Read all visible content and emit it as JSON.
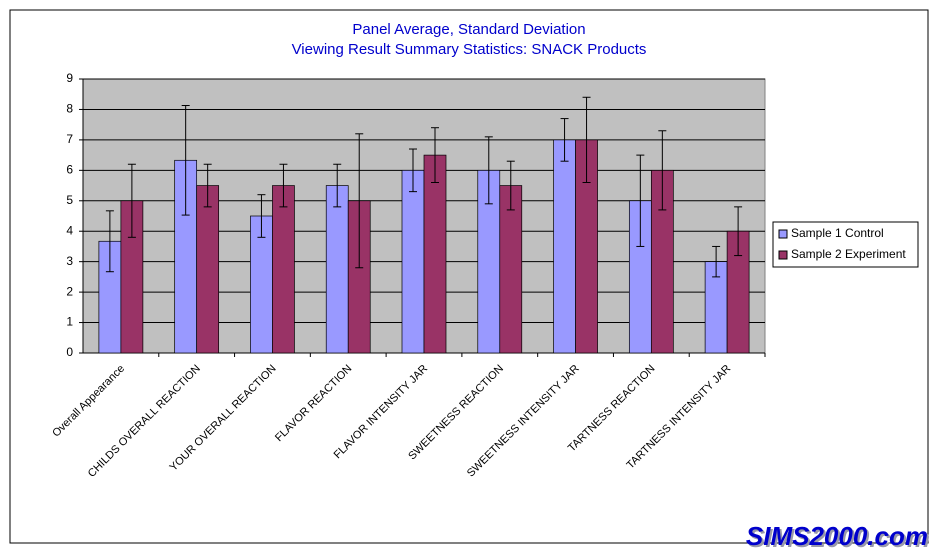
{
  "chart_data": {
    "type": "bar",
    "title": "Panel Average, Standard Deviation",
    "subtitle": "Viewing Result Summary Statistics:  SNACK Products",
    "categories": [
      "Overall Appearance",
      "CHILDS OVERALL REACTION",
      "YOUR OVERALL REACTION",
      "FLAVOR REACTION",
      "FLAVOR INTENSITY JAR",
      "SWEETNESS REACTION",
      "SWEETNESS INTENSITY JAR",
      "TARTNESS REACTION",
      "TARTNESS INTENSITY JAR"
    ],
    "series": [
      {
        "name": "Sample 1 Control",
        "color": "#9999ff",
        "values": [
          3.67,
          6.33,
          4.5,
          5.5,
          6,
          6,
          7,
          5,
          3
        ],
        "errors": [
          1,
          1.8,
          0.7,
          0.7,
          0.7,
          1.1,
          0.7,
          1.5,
          0.5
        ]
      },
      {
        "name": "Sample 2 Experiment",
        "color": "#993366",
        "values": [
          5,
          5.5,
          5.5,
          5,
          6.5,
          5.5,
          7,
          6,
          4
        ],
        "errors": [
          1.2,
          0.7,
          0.7,
          2.2,
          0.9,
          0.8,
          1.4,
          1.3,
          0.8
        ]
      }
    ],
    "ylim": [
      0,
      9
    ],
    "yticks": [
      0,
      1,
      2,
      3,
      4,
      5,
      6,
      7,
      8,
      9
    ],
    "grid": true,
    "legend": "right",
    "watermark": "SIMS2000.com"
  }
}
